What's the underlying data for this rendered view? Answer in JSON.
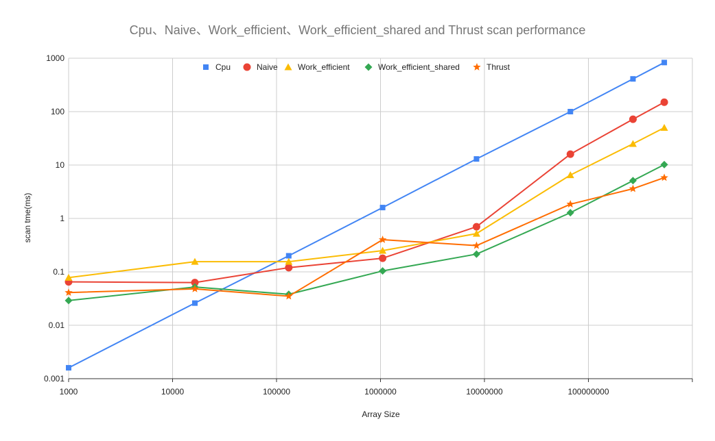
{
  "chart_data": {
    "type": "line",
    "title": "Cpu、Naive、Work_efficient、Work_efficient_shared and Thrust scan performance",
    "xlabel": "Array Size",
    "ylabel": "scan tme(ms)",
    "xscale": "log",
    "yscale": "log",
    "xlim": [
      1000,
      1000000000
    ],
    "ylim": [
      0.001,
      1000
    ],
    "x_ticks": [
      "1000",
      "10000",
      "100000",
      "1000000",
      "10000000",
      "100000000"
    ],
    "y_ticks": [
      "0.001",
      "0.01",
      "0.1",
      "1",
      "10",
      "100",
      "1000"
    ],
    "grid": true,
    "legend_position": "top",
    "series": [
      {
        "name": "Cpu",
        "color": "#4285f4",
        "marker": "square",
        "x": [
          1000,
          16384,
          131072,
          1048576,
          8388608,
          67108864,
          268435456,
          536870912
        ],
        "y": [
          0.0016,
          0.026,
          0.2,
          1.6,
          13,
          100,
          410,
          830
        ]
      },
      {
        "name": "Naive",
        "color": "#ea4335",
        "marker": "circle",
        "x": [
          1000,
          16384,
          131072,
          1048576,
          8388608,
          67108864,
          268435456,
          536870912
        ],
        "y": [
          0.065,
          0.063,
          0.12,
          0.18,
          0.7,
          16,
          72,
          150
        ]
      },
      {
        "name": "Work_efficient",
        "color": "#fbbc04",
        "marker": "triangle",
        "x": [
          1000,
          16384,
          131072,
          1048576,
          8388608,
          67108864,
          268435456,
          536870912
        ],
        "y": [
          0.078,
          0.155,
          0.155,
          0.25,
          0.52,
          6.5,
          25,
          50
        ]
      },
      {
        "name": "Work_efficient_shared",
        "color": "#34a853",
        "marker": "diamond",
        "x": [
          1000,
          16384,
          131072,
          1048576,
          8388608,
          67108864,
          268435456,
          536870912
        ],
        "y": [
          0.029,
          0.052,
          0.038,
          0.104,
          0.215,
          1.28,
          5.1,
          10.2
        ]
      },
      {
        "name": "Thrust",
        "color": "#ff6d01",
        "marker": "star",
        "x": [
          1000,
          16384,
          131072,
          1048576,
          8388608,
          67108864,
          268435456,
          536870912
        ],
        "y": [
          0.041,
          0.048,
          0.035,
          0.4,
          0.31,
          1.85,
          3.6,
          5.8
        ]
      }
    ]
  }
}
